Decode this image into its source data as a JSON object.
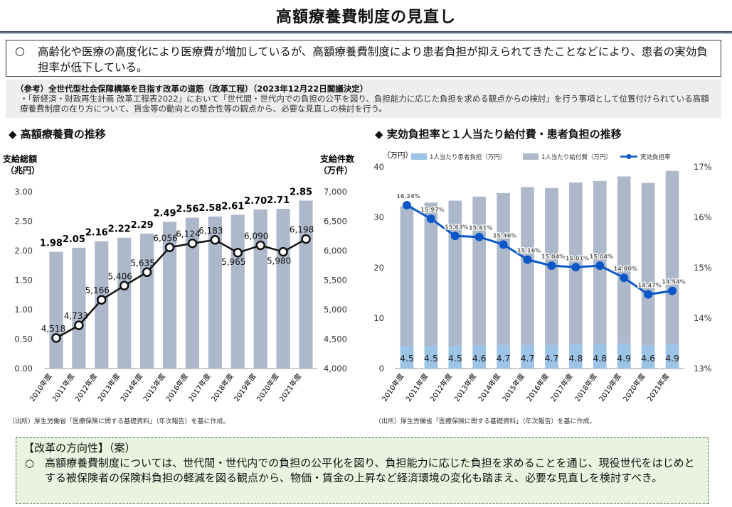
{
  "page": {
    "title": "高額療養費制度の見直し",
    "summary_bullet": "○",
    "summary_text": "高齢化や医療の高度化により医療費が増加しているが、高額療養費制度により患者負担が抑えられてきたことなどにより、患者の実効負担率が低下している。",
    "ref_heading": "（参考）全世代型社会保障構築を目指す改革の道筋（改革工程）（2023年12月22日閣議決定）",
    "ref_body": "・「新経済・財政再生計画 改革工程表2022」において「世代間・世代内での負担の公平を図り、負担能力に応じた負担を求める観点からの検討」を行う事項として位置付けられている高額療養費制度の在り方について、賃金等の動向との整合性等の観点から、必要な見直しの検討を行う。",
    "left_section_title": "◆ 高額療養費の推移",
    "right_section_title": "◆ 実効負担率と１人当たり給付費・患者負担の推移",
    "left_source": "（出所）厚生労働省「医療保険に関する基礎資料」（年次報告）を基に作成。",
    "right_source": "（出所）厚生労働省「医療保険に関する基礎資料」（年次報告）を基に作成。",
    "reform_heading": "【改革の方向性】（案）",
    "reform_bullet": "○",
    "reform_text": "高額療養費制度については、世代間・世代内での負担の公平化を図り、負担能力に応じた負担を求めることを通じ、現役世代をはじめとする被保険者の保険料負担の軽減を図る観点から、物価・賃金の上昇など経済環境の変化も踏まえ、必要な見直しを検討すべき。",
    "colors": {
      "bar": "#adb9ca",
      "patient_bar": "#9dc3e6",
      "line": "#0b57c8",
      "title_rule": "#2a3a58",
      "reform_bg": "#eaf3df"
    }
  },
  "chart_data": [
    {
      "type": "bar",
      "title": "高額療養費の推移",
      "categories": [
        "2010年度",
        "2011年度",
        "2012年度",
        "2013年度",
        "2014年度",
        "2015年度",
        "2016年度",
        "2017年度",
        "2018年度",
        "2019年度",
        "2020年度",
        "2021年度"
      ],
      "ylabel_left_line1": "支給総額",
      "ylabel_left_line2": "（兆円）",
      "ylabel_right_line1": "支給件数",
      "ylabel_right_line2": "（万件）",
      "ylim_left": [
        0,
        3.0
      ],
      "yticks_left": [
        "0.00",
        "0.50",
        "1.00",
        "1.50",
        "2.00",
        "2.50",
        "3.00"
      ],
      "ylim_right": [
        4000,
        7000
      ],
      "yticks_right": [
        "4,000",
        "4,500",
        "5,000",
        "5,500",
        "6,000",
        "6,500",
        "7,000"
      ],
      "series": [
        {
          "values": [
            1.98,
            2.05,
            2.16,
            2.22,
            2.29,
            2.49,
            2.56,
            2.58,
            2.61,
            2.7,
            2.71,
            2.85
          ],
          "labels": [
            "1.98",
            "2.05",
            "2.16",
            "2.22",
            "2.29",
            "2.49",
            "2.56",
            "2.58",
            "2.61",
            "2.70",
            "2.71",
            "2.85"
          ]
        },
        {
          "values": [
            4518,
            4733,
            5166,
            5406,
            5635,
            6056,
            6124,
            6183,
            5965,
            6090,
            5980,
            6198
          ],
          "labels": [
            "4,518",
            "4,733",
            "5,166",
            "5,406",
            "5,635",
            "6,056",
            "6,124",
            "6,183",
            "5,965",
            "6,090",
            "5,980",
            "6,198"
          ]
        }
      ]
    },
    {
      "type": "bar",
      "title": "実効負担率と１人当たり給付費・患者負担の推移",
      "categories": [
        "2010年度",
        "2011年度",
        "2012年度",
        "2013年度",
        "2014年度",
        "2015年度",
        "2016年度",
        "2017年度",
        "2018年度",
        "2019年度",
        "2020年度",
        "2021年度"
      ],
      "ylabel_left": "（万円）",
      "ylim_left": [
        0,
        40
      ],
      "yticks_left": [
        "0",
        "10",
        "20",
        "30",
        "40"
      ],
      "ylim_right": [
        13,
        17
      ],
      "yticks_right": [
        "13%",
        "14%",
        "15%",
        "16%",
        "17%"
      ],
      "series": [
        {
          "name": "1人当たり患者負担（万円）",
          "values": [
            4.5,
            4.5,
            4.5,
            4.6,
            4.7,
            4.7,
            4.7,
            4.8,
            4.8,
            4.9,
            4.6,
            4.9
          ],
          "labels": [
            "4.5",
            "4.5",
            "4.5",
            "4.6",
            "4.7",
            "4.7",
            "4.7",
            "4.8",
            "4.8",
            "4.9",
            "4.6",
            "4.9"
          ]
        },
        {
          "name": "1人当たり給付費（万円）",
          "values": [
            27.7,
            28.4,
            28.8,
            29.5,
            30.1,
            31.3,
            31.1,
            32.1,
            32.4,
            33.2,
            32.2,
            34.3
          ]
        },
        {
          "name": "実効負担率",
          "values": [
            16.24,
            15.97,
            15.63,
            15.61,
            15.46,
            15.16,
            15.04,
            15.01,
            15.04,
            14.8,
            14.47,
            14.54
          ],
          "labels": [
            "16.24%",
            "15.97%",
            "15.63%",
            "15.61%",
            "15.46%",
            "15.16%",
            "15.04%",
            "15.01%",
            "15.04%",
            "14.80%",
            "14.47%",
            "14.54%"
          ]
        }
      ]
    }
  ]
}
